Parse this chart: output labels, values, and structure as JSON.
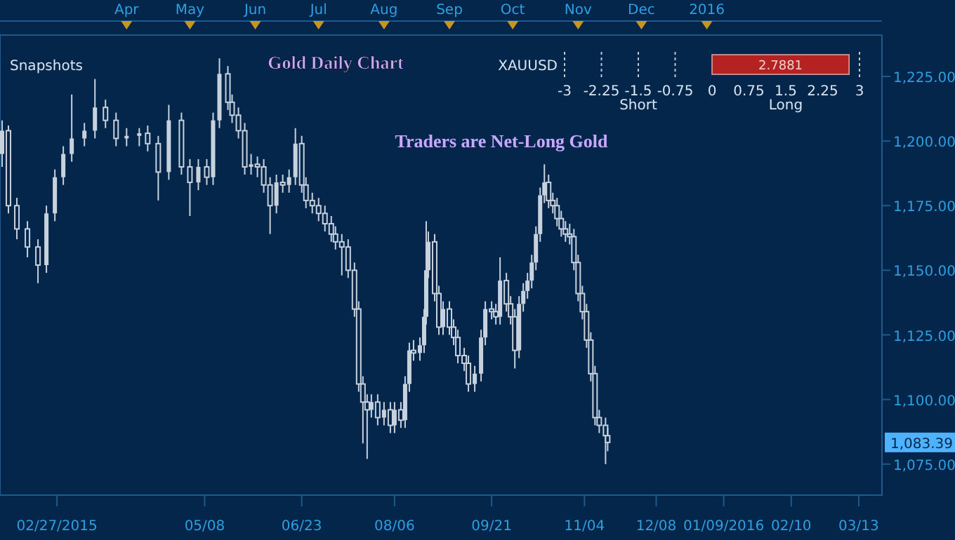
{
  "chart_data": [
    {
      "type": "candlestick",
      "title": "Gold Daily Chart",
      "color": "#c8d2de",
      "annotations": [
        "Snapshots",
        "Traders are Net-Long Gold",
        "1,083.39"
      ],
      "x": [
        "2015-02-01",
        "2015-02-04",
        "2015-02-08",
        "2015-02-13",
        "2015-02-18",
        "2015-02-22",
        "2015-02-26",
        "2015-03-02",
        "2015-03-06",
        "2015-03-12",
        "2015-03-17",
        "2015-03-22",
        "2015-03-27",
        "2015-04-01",
        "2015-04-07",
        "2015-04-11",
        "2015-04-16",
        "2015-04-21",
        "2015-04-27",
        "2015-05-01",
        "2015-05-05",
        "2015-05-09",
        "2015-05-12",
        "2015-05-15",
        "2015-05-19",
        "2015-05-21",
        "2015-05-24",
        "2015-05-27",
        "2015-05-30",
        "2015-06-02",
        "2015-06-05",
        "2015-06-08",
        "2015-06-11",
        "2015-06-14",
        "2015-06-17",
        "2015-06-20",
        "2015-06-23",
        "2015-06-25",
        "2015-06-28",
        "2015-07-01",
        "2015-07-04",
        "2015-07-07",
        "2015-07-09",
        "2015-07-12",
        "2015-07-15",
        "2015-07-18",
        "2015-07-20",
        "2015-07-22",
        "2015-07-24",
        "2015-07-26",
        "2015-07-29",
        "2015-08-01",
        "2015-08-04",
        "2015-08-06",
        "2015-08-09",
        "2015-08-11",
        "2015-08-13",
        "2015-08-15",
        "2015-08-18",
        "2015-08-20",
        "2015-08-21",
        "2015-08-22",
        "2015-08-25",
        "2015-08-27",
        "2015-08-29",
        "2015-09-01",
        "2015-09-03",
        "2015-09-05",
        "2015-09-08",
        "2015-09-10",
        "2015-09-13",
        "2015-09-16",
        "2015-09-18",
        "2015-09-21",
        "2015-09-23",
        "2015-09-25",
        "2015-09-28",
        "2015-09-30",
        "2015-10-02",
        "2015-10-04",
        "2015-10-06",
        "2015-10-08",
        "2015-10-10",
        "2015-10-12",
        "2015-10-14",
        "2015-10-16",
        "2015-10-18",
        "2015-10-20",
        "2015-10-22",
        "2015-10-24",
        "2015-10-26",
        "2015-10-28",
        "2015-10-30",
        "2015-11-01",
        "2015-11-03",
        "2015-11-05",
        "2015-11-07",
        "2015-11-09",
        "2015-11-11",
        "2015-11-14",
        "2015-11-15"
      ],
      "ohlc": [
        [
          1195,
          1208,
          1190,
          1204
        ],
        [
          1204,
          1206,
          1172,
          1175
        ],
        [
          1175,
          1178,
          1162,
          1166
        ],
        [
          1166,
          1169,
          1155,
          1159
        ],
        [
          1159,
          1162,
          1145,
          1152
        ],
        [
          1152,
          1175,
          1149,
          1172
        ],
        [
          1172,
          1189,
          1169,
          1186
        ],
        [
          1186,
          1198,
          1183,
          1195
        ],
        [
          1195,
          1218,
          1192,
          1201
        ],
        [
          1201,
          1207,
          1198,
          1204
        ],
        [
          1204,
          1224,
          1201,
          1213
        ],
        [
          1213,
          1216,
          1205,
          1208
        ],
        [
          1208,
          1211,
          1198,
          1201
        ],
        [
          1201,
          1205,
          1198,
          1202
        ],
        [
          1202,
          1205,
          1198,
          1203
        ],
        [
          1203,
          1206,
          1196,
          1199
        ],
        [
          1199,
          1202,
          1177,
          1188
        ],
        [
          1188,
          1214,
          1185,
          1208
        ],
        [
          1208,
          1211,
          1187,
          1190
        ],
        [
          1190,
          1193,
          1171,
          1184
        ],
        [
          1184,
          1193,
          1181,
          1190
        ],
        [
          1190,
          1193,
          1183,
          1186
        ],
        [
          1186,
          1211,
          1183,
          1208
        ],
        [
          1208,
          1232,
          1205,
          1226
        ],
        [
          1226,
          1229,
          1212,
          1215
        ],
        [
          1215,
          1218,
          1207,
          1210
        ],
        [
          1210,
          1213,
          1201,
          1204
        ],
        [
          1204,
          1207,
          1187,
          1190
        ],
        [
          1190,
          1195,
          1187,
          1191
        ],
        [
          1191,
          1194,
          1186,
          1190
        ],
        [
          1190,
          1193,
          1180,
          1183
        ],
        [
          1183,
          1186,
          1164,
          1175
        ],
        [
          1175,
          1187,
          1172,
          1184
        ],
        [
          1184,
          1187,
          1180,
          1183
        ],
        [
          1183,
          1189,
          1180,
          1186
        ],
        [
          1186,
          1205,
          1183,
          1199
        ],
        [
          1199,
          1202,
          1180,
          1183
        ],
        [
          1183,
          1186,
          1174,
          1177
        ],
        [
          1177,
          1180,
          1172,
          1175
        ],
        [
          1175,
          1178,
          1169,
          1172
        ],
        [
          1172,
          1175,
          1165,
          1168
        ],
        [
          1168,
          1171,
          1161,
          1164
        ],
        [
          1164,
          1167,
          1158,
          1161
        ],
        [
          1161,
          1164,
          1148,
          1159
        ],
        [
          1159,
          1162,
          1147,
          1150
        ],
        [
          1150,
          1153,
          1132,
          1135
        ],
        [
          1135,
          1138,
          1103,
          1106
        ],
        [
          1106,
          1109,
          1083,
          1099
        ],
        [
          1099,
          1102,
          1077,
          1096
        ],
        [
          1096,
          1102,
          1093,
          1099
        ],
        [
          1099,
          1102,
          1090,
          1093
        ],
        [
          1093,
          1099,
          1090,
          1096
        ],
        [
          1096,
          1099,
          1087,
          1090
        ],
        [
          1090,
          1099,
          1087,
          1096
        ],
        [
          1096,
          1099,
          1089,
          1092
        ],
        [
          1092,
          1109,
          1089,
          1106
        ],
        [
          1106,
          1122,
          1103,
          1119
        ],
        [
          1119,
          1123,
          1115,
          1118
        ],
        [
          1118,
          1124,
          1115,
          1121
        ],
        [
          1121,
          1135,
          1118,
          1132
        ],
        [
          1132,
          1169,
          1129,
          1150
        ],
        [
          1150,
          1165,
          1147,
          1161
        ],
        [
          1161,
          1164,
          1138,
          1141
        ],
        [
          1141,
          1144,
          1125,
          1128
        ],
        [
          1128,
          1138,
          1125,
          1135
        ],
        [
          1135,
          1138,
          1125,
          1128
        ],
        [
          1128,
          1131,
          1121,
          1124
        ],
        [
          1124,
          1127,
          1114,
          1117
        ],
        [
          1117,
          1120,
          1111,
          1114
        ],
        [
          1114,
          1117,
          1103,
          1106
        ],
        [
          1106,
          1113,
          1103,
          1110
        ],
        [
          1110,
          1127,
          1107,
          1124
        ],
        [
          1124,
          1138,
          1121,
          1135
        ],
        [
          1135,
          1138,
          1131,
          1134
        ],
        [
          1134,
          1137,
          1129,
          1132
        ],
        [
          1132,
          1155,
          1129,
          1146
        ],
        [
          1146,
          1149,
          1134,
          1137
        ],
        [
          1137,
          1140,
          1129,
          1132
        ],
        [
          1132,
          1135,
          1112,
          1119
        ],
        [
          1119,
          1140,
          1116,
          1137
        ],
        [
          1137,
          1145,
          1134,
          1142
        ],
        [
          1142,
          1149,
          1139,
          1146
        ],
        [
          1146,
          1156,
          1143,
          1153
        ],
        [
          1153,
          1167,
          1150,
          1164
        ],
        [
          1164,
          1182,
          1161,
          1179
        ],
        [
          1179,
          1191,
          1176,
          1184
        ],
        [
          1184,
          1187,
          1174,
          1177
        ],
        [
          1177,
          1180,
          1172,
          1175
        ],
        [
          1175,
          1178,
          1167,
          1170
        ],
        [
          1170,
          1173,
          1163,
          1166
        ],
        [
          1166,
          1169,
          1161,
          1164
        ],
        [
          1164,
          1168,
          1160,
          1163
        ],
        [
          1163,
          1166,
          1150,
          1153
        ],
        [
          1153,
          1156,
          1138,
          1141
        ],
        [
          1141,
          1144,
          1131,
          1134
        ],
        [
          1134,
          1137,
          1120,
          1123
        ],
        [
          1123,
          1126,
          1107,
          1110
        ],
        [
          1110,
          1113,
          1090,
          1093
        ],
        [
          1093,
          1096,
          1087,
          1090
        ],
        [
          1090,
          1093,
          1075,
          1086
        ],
        [
          1086,
          1089,
          1080,
          1083.39
        ]
      ],
      "xlim": [
        "2015-01-31",
        "2016-03-24"
      ],
      "xticks": [
        {
          "value": "2015-02-27",
          "label": "02/27/2015"
        },
        {
          "value": "2015-05-08",
          "label": "05/08"
        },
        {
          "value": "2015-06-23",
          "label": "06/23"
        },
        {
          "value": "2015-08-06",
          "label": "08/06"
        },
        {
          "value": "2015-09-21",
          "label": "09/21"
        },
        {
          "value": "2015-11-04",
          "label": "11/04"
        },
        {
          "value": "2015-12-08",
          "label": "12/08"
        },
        {
          "value": "2016-01-09",
          "label": "01/09/2016"
        },
        {
          "value": "2016-02-10",
          "label": "02/10"
        },
        {
          "value": "2016-03-13",
          "label": "03/13"
        }
      ],
      "x2lim": [
        "2015-01-31",
        "2016-03-24"
      ],
      "x2ticks": [
        {
          "value": "2015-04-01",
          "label": "Apr"
        },
        {
          "value": "2015-05-01",
          "label": "May"
        },
        {
          "value": "2015-06-01",
          "label": "Jun"
        },
        {
          "value": "2015-07-01",
          "label": "Jul"
        },
        {
          "value": "2015-08-01",
          "label": "Aug"
        },
        {
          "value": "2015-09-01",
          "label": "Sep"
        },
        {
          "value": "2015-10-01",
          "label": "Oct"
        },
        {
          "value": "2015-11-01",
          "label": "Nov"
        },
        {
          "value": "2015-12-01",
          "label": "Dec"
        },
        {
          "value": "2016-01-01",
          "label": "2016"
        }
      ],
      "ylim": [
        1063,
        1241
      ],
      "yticks": [
        {
          "value": 1075,
          "label": "1,075.00"
        },
        {
          "value": 1100,
          "label": "1,100.00"
        },
        {
          "value": 1125,
          "label": "1,125.00"
        },
        {
          "value": 1150,
          "label": "1,150.00"
        },
        {
          "value": 1175,
          "label": "1,175.00"
        },
        {
          "value": 1200,
          "label": "1,200.00"
        },
        {
          "value": 1225,
          "label": "1,225.00"
        }
      ]
    },
    {
      "type": "bar",
      "orientation": "horizontal",
      "categories": [
        "XAUUSD"
      ],
      "values": [
        2.7881
      ],
      "value_labels": [
        "2.7881"
      ],
      "color": "#b52222",
      "xlim": [
        -3,
        3
      ],
      "xticks": [
        -3,
        -2.25,
        -1.5,
        -0.75,
        0,
        0.75,
        1.5,
        2.25,
        3
      ],
      "annotations": [
        "Short",
        "Long"
      ],
      "ref_lines": [
        {
          "axis": "x",
          "value": -3,
          "line_style": "dotted",
          "color": "#c0c8d0"
        },
        {
          "axis": "x",
          "value": -2.25,
          "line_style": "dotted",
          "color": "#c0c8d0"
        },
        {
          "axis": "x",
          "value": -1.5,
          "line_style": "dotted",
          "color": "#c0c8d0"
        },
        {
          "axis": "x",
          "value": -0.75,
          "line_style": "dotted",
          "color": "#c0c8d0"
        },
        {
          "axis": "x",
          "value": 3,
          "line_style": "dotted",
          "color": "#c0c8d0"
        }
      ]
    }
  ]
}
